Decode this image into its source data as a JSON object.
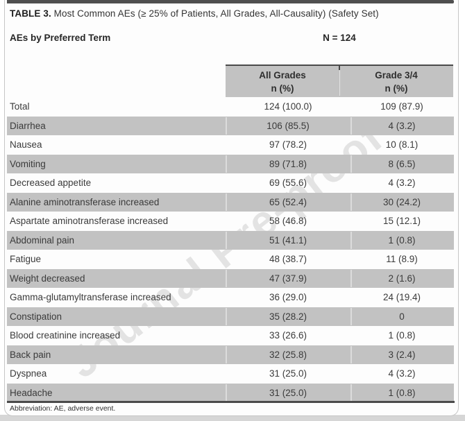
{
  "title": {
    "label": "TABLE 3.",
    "text": " Most Common AEs (≥ 25% of Patients, All Grades, All-Causality) (Safety Set)"
  },
  "table": {
    "row_header": "AEs by Preferred Term",
    "n_header": "N = 124",
    "columns": [
      {
        "title": "All Grades",
        "subtitle": "n (%)"
      },
      {
        "title": "Grade 3/4",
        "subtitle": "n (%)"
      }
    ],
    "rows": [
      {
        "term": "Total",
        "all_grades": "124 (100.0)",
        "grade_3_4": "109 (87.9)"
      },
      {
        "term": "Diarrhea",
        "all_grades": "106 (85.5)",
        "grade_3_4": "4 (3.2)"
      },
      {
        "term": "Nausea",
        "all_grades": "97 (78.2)",
        "grade_3_4": "10 (8.1)"
      },
      {
        "term": "Vomiting",
        "all_grades": "89 (71.8)",
        "grade_3_4": "8 (6.5)"
      },
      {
        "term": "Decreased appetite",
        "all_grades": "69 (55.6)",
        "grade_3_4": "4 (3.2)"
      },
      {
        "term": "Alanine aminotransferase increased",
        "all_grades": "65 (52.4)",
        "grade_3_4": "30 (24.2)"
      },
      {
        "term": "Aspartate aminotransferase increased",
        "all_grades": "58 (46.8)",
        "grade_3_4": "15 (12.1)"
      },
      {
        "term": "Abdominal pain",
        "all_grades": "51 (41.1)",
        "grade_3_4": "1 (0.8)"
      },
      {
        "term": "Fatigue",
        "all_grades": "48 (38.7)",
        "grade_3_4": "11 (8.9)"
      },
      {
        "term": "Weight decreased",
        "all_grades": "47 (37.9)",
        "grade_3_4": "2 (1.6)"
      },
      {
        "term": "Gamma-glutamyltransferase increased",
        "all_grades": "36 (29.0)",
        "grade_3_4": "24 (19.4)"
      },
      {
        "term": "Constipation",
        "all_grades": "35 (28.2)",
        "grade_3_4": "0"
      },
      {
        "term": "Blood creatinine increased",
        "all_grades": "33 (26.6)",
        "grade_3_4": "1 (0.8)"
      },
      {
        "term": "Back pain",
        "all_grades": "32 (25.8)",
        "grade_3_4": "3 (2.4)"
      },
      {
        "term": "Dyspnea",
        "all_grades": "31 (25.0)",
        "grade_3_4": "4 (3.2)"
      },
      {
        "term": "Headache",
        "all_grades": "31 (25.0)",
        "grade_3_4": "1 (0.8)"
      }
    ],
    "footnote": "Abbreviation: AE, adverse event."
  },
  "watermark": "Journal Pre-proof",
  "colors": {
    "row_shade": "#c2c2c2",
    "rule": "#4a4a4a",
    "text": "#3a3a3a",
    "card_border": "#c6c6c6"
  }
}
